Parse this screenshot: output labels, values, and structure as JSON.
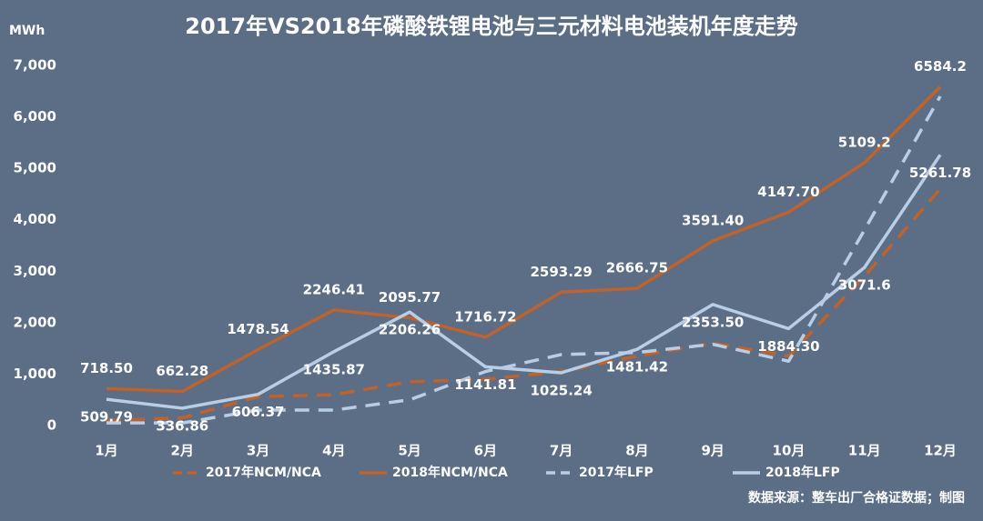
{
  "chart_data": {
    "type": "line",
    "title": "2017年VS2018年磷酸铁锂电池与三元材料电池装机年度走势",
    "y_label": "MWh",
    "source": "数据来源：整车出厂合格证数据；制图",
    "categories": [
      "1月",
      "2月",
      "3月",
      "4月",
      "5月",
      "6月",
      "7月",
      "8月",
      "9月",
      "10月",
      "11月",
      "12月"
    ],
    "ylim": [
      0,
      7000
    ],
    "yticks": [
      0,
      {
        "value": 1000,
        "label": "1,000"
      },
      {
        "value": 2000,
        "label": "2,000"
      },
      {
        "value": 3000,
        "label": "3,000"
      },
      {
        "value": 4000,
        "label": "4,000"
      },
      {
        "value": 5000,
        "label": "5,000"
      },
      {
        "value": 6000,
        "label": "6,000"
      },
      {
        "value": 7000,
        "label": "7,000"
      }
    ],
    "grid": false,
    "legend": "bottom",
    "series": [
      {
        "name": "2017年NCM/NCA",
        "color": "#c0622a",
        "dash": true,
        "values": [
          100,
          150,
          560,
          600,
          850,
          900,
          1050,
          1350,
          1600,
          1350,
          2900,
          4600
        ]
      },
      {
        "name": "2018年NCM/NCA",
        "color": "#c0622a",
        "dash": false,
        "values": [
          718.5,
          662.28,
          1478.54,
          2246.41,
          2095.77,
          1716.72,
          2593.29,
          2666.75,
          3591.4,
          4147.7,
          5109.2,
          6584.2
        ],
        "value_labels": [
          "718.50",
          "662.28",
          "1478.54",
          "2246.41",
          "2095.77",
          "1716.72",
          "2593.29",
          "2666.75",
          "3591.40",
          "4147.70",
          "5109.2",
          "6584.2"
        ]
      },
      {
        "name": "2017年LFP",
        "color": "#b8cde6",
        "dash": true,
        "values": [
          50,
          50,
          300,
          300,
          500,
          1050,
          1380,
          1420,
          1580,
          1250,
          3800,
          6400
        ]
      },
      {
        "name": "2018年LFP",
        "color": "#b8cde6",
        "dash": false,
        "values": [
          509.79,
          336.86,
          606.37,
          1435.87,
          2206.26,
          1141.81,
          1025.24,
          1481.42,
          2353.5,
          1884.3,
          3071.6,
          5261.78
        ],
        "value_labels": [
          "509.79",
          "336.86",
          "606.37",
          "1435.87",
          "2206.26",
          "1141.81",
          "1025.24",
          "1481.42",
          "2353.50",
          "1884.30",
          "3071.6",
          "5261.78"
        ]
      }
    ]
  }
}
